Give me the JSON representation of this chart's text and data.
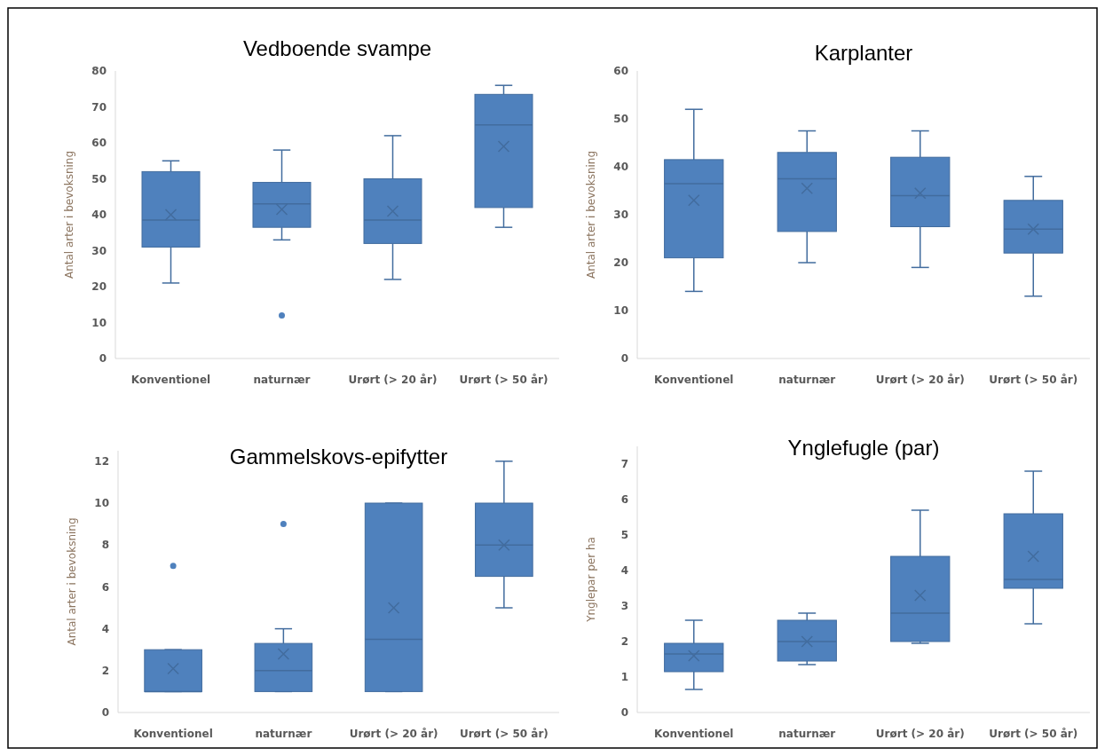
{
  "chart_data": [
    {
      "type": "box",
      "title": "Vedboende svampe",
      "ylabel": "Antal arter i bevoksning",
      "categories": [
        "Konventionel",
        "naturnær",
        "Urørt (> 20 år)",
        "Urørt (> 50 år)"
      ],
      "ylim": [
        0,
        80
      ],
      "yticks": [
        0,
        10,
        20,
        30,
        40,
        50,
        60,
        70,
        80
      ],
      "color": "#4f81bd",
      "grid": false,
      "boxes": [
        {
          "low": 21,
          "q1": 31,
          "median": 38.5,
          "q3": 52,
          "high": 55,
          "mean": 40
        },
        {
          "low": 33,
          "q1": 36.5,
          "median": 43,
          "q3": 49,
          "high": 58,
          "mean": 41.5,
          "outliers": [
            12
          ]
        },
        {
          "low": 22,
          "q1": 32,
          "median": 38.5,
          "q3": 50,
          "high": 62,
          "mean": 41
        },
        {
          "low": 36.5,
          "q1": 42,
          "median": 65,
          "q3": 73.5,
          "high": 76,
          "mean": 59
        }
      ]
    },
    {
      "type": "box",
      "title": "Karplanter",
      "ylabel": "Antal arter i bevoksning",
      "categories": [
        "Konventionel",
        "naturnær",
        "Urørt (> 20 år)",
        "Urørt (> 50 år)"
      ],
      "ylim": [
        0,
        60
      ],
      "yticks": [
        0,
        10,
        20,
        30,
        40,
        50,
        60
      ],
      "color": "#4f81bd",
      "grid": false,
      "boxes": [
        {
          "low": 14,
          "q1": 21,
          "median": 36.5,
          "q3": 41.5,
          "high": 52,
          "mean": 33
        },
        {
          "low": 20,
          "q1": 26.5,
          "median": 37.5,
          "q3": 43,
          "high": 47.5,
          "mean": 35.5
        },
        {
          "low": 19,
          "q1": 27.5,
          "median": 34,
          "q3": 42,
          "high": 47.5,
          "mean": 34.5
        },
        {
          "low": 13,
          "q1": 22,
          "median": 27,
          "q3": 33,
          "high": 38,
          "mean": 27
        }
      ]
    },
    {
      "type": "box",
      "title": "Gammelskovs-epifytter",
      "ylabel": "Antal arter i bevoksning",
      "categories": [
        "Konventionel",
        "naturnær",
        "Urørt (> 20 år)",
        "Urørt (> 50 år)"
      ],
      "ylim": [
        0,
        12.5
      ],
      "yticks": [
        0,
        2,
        4,
        6,
        8,
        10,
        12
      ],
      "color": "#4f81bd",
      "grid": false,
      "boxes": [
        {
          "low": 1,
          "q1": 1,
          "median": 1,
          "q3": 3,
          "high": 3,
          "mean": 2.1,
          "outliers": [
            7
          ]
        },
        {
          "low": 1,
          "q1": 1,
          "median": 2,
          "q3": 3.3,
          "high": 4,
          "mean": 2.8,
          "outliers": [
            9
          ]
        },
        {
          "low": 1,
          "q1": 1,
          "median": 3.5,
          "q3": 10,
          "high": 10,
          "mean": 5
        },
        {
          "low": 5,
          "q1": 6.5,
          "median": 8,
          "q3": 10,
          "high": 12,
          "mean": 8
        }
      ]
    },
    {
      "type": "box",
      "title": "Ynglefugle (par)",
      "ylabel": "Ynglepar per ha",
      "categories": [
        "Konventionel",
        "naturnær",
        "Urørt (> 20 år)",
        "Urørt (> 50 år)"
      ],
      "ylim": [
        0,
        7.5
      ],
      "yticks": [
        0,
        1,
        2,
        3,
        4,
        5,
        6,
        7
      ],
      "color": "#4f81bd",
      "grid": false,
      "boxes": [
        {
          "low": 0.65,
          "q1": 1.15,
          "median": 1.65,
          "q3": 1.95,
          "high": 2.6,
          "mean": 1.6
        },
        {
          "low": 1.35,
          "q1": 1.45,
          "median": 2,
          "q3": 2.6,
          "high": 2.8,
          "mean": 2
        },
        {
          "low": 1.95,
          "q1": 2,
          "median": 2.8,
          "q3": 4.4,
          "high": 5.7,
          "mean": 3.3
        },
        {
          "low": 2.5,
          "q1": 3.5,
          "median": 3.75,
          "q3": 5.6,
          "high": 6.8,
          "mean": 4.4
        }
      ]
    }
  ]
}
